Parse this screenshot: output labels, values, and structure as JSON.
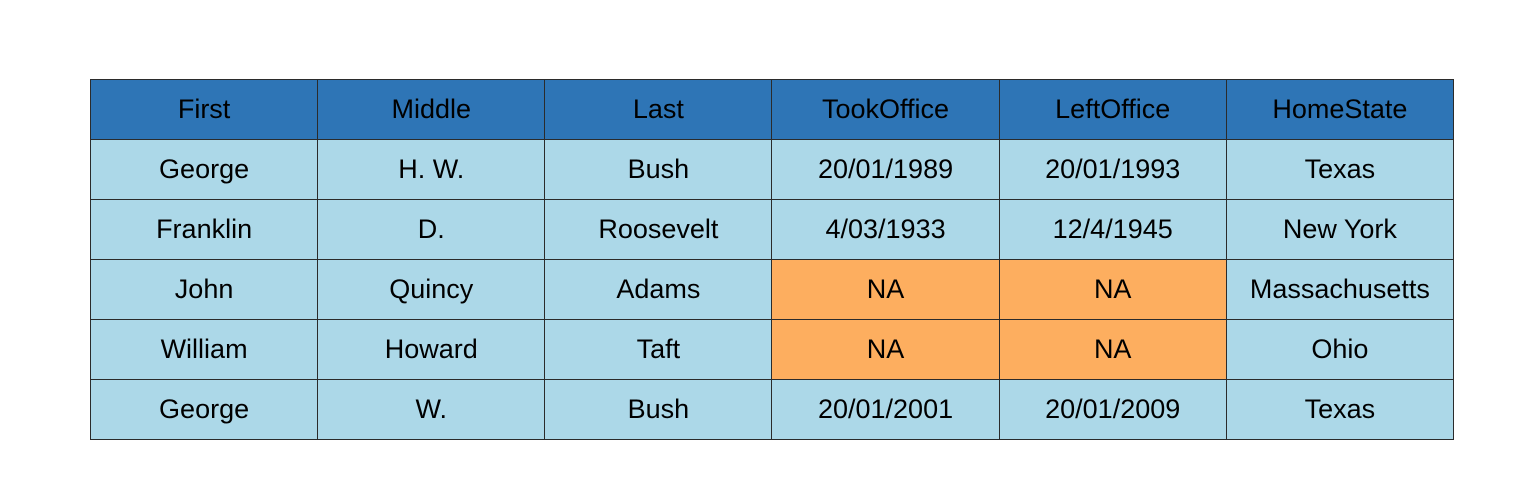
{
  "table": {
    "columns": [
      "First",
      "Middle",
      "Last",
      "TookOffice",
      "LeftOffice",
      "HomeState"
    ],
    "rows": [
      [
        "George",
        "H. W.",
        "Bush",
        "20/01/1989",
        "20/01/1993",
        "Texas"
      ],
      [
        "Franklin",
        "D.",
        "Roosevelt",
        "4/03/1933",
        "12/4/1945",
        "New York"
      ],
      [
        "John",
        "Quincy",
        "Adams",
        "NA",
        "NA",
        "Massachusetts"
      ],
      [
        "William",
        "Howard",
        "Taft",
        "NA",
        "NA",
        "Ohio"
      ],
      [
        "George",
        "W.",
        "Bush",
        "20/01/2001",
        "20/01/2009",
        "Texas"
      ]
    ]
  },
  "colors": {
    "header_background": "#2e75b6",
    "cell_background": "#acd8e8",
    "missing_value_background": "#fdae5f",
    "border": "#2b2b2b"
  }
}
